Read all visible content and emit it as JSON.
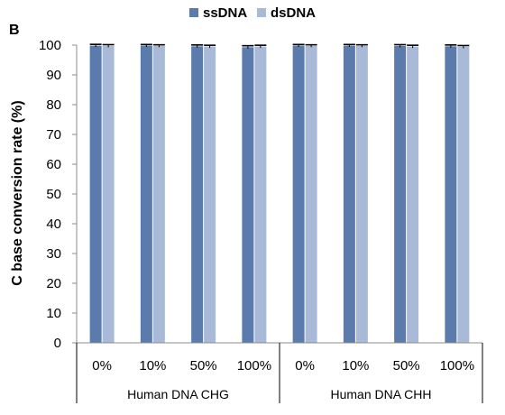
{
  "panel_label": "B",
  "chart_data": {
    "type": "bar",
    "title": "",
    "ylabel": "C base conversion rate (%)",
    "xlabel": "",
    "ylim": [
      0,
      100
    ],
    "yticks": [
      0,
      10,
      20,
      30,
      40,
      50,
      60,
      70,
      80,
      90,
      100
    ],
    "grid": false,
    "legend_position": "top-center",
    "groups": [
      {
        "label": "Human DNA CHG",
        "categories": [
          "0%",
          "10%",
          "50%",
          "100%"
        ]
      },
      {
        "label": "Human DNA CHH",
        "categories": [
          "0%",
          "10%",
          "50%",
          "100%"
        ]
      }
    ],
    "categories": [
      "0%",
      "10%",
      "50%",
      "100%",
      "0%",
      "10%",
      "50%",
      "100%"
    ],
    "series": [
      {
        "name": "ssDNA",
        "color": "#5B7BAD",
        "values": [
          99.8,
          99.8,
          99.6,
          99.3,
          99.8,
          99.8,
          99.7,
          99.6
        ],
        "error": [
          0.15,
          0.1,
          0.15,
          0.2,
          0.1,
          0.1,
          0.15,
          0.15
        ]
      },
      {
        "name": "dsDNA",
        "color": "#A9BAD8",
        "values": [
          99.7,
          99.7,
          99.5,
          99.5,
          99.7,
          99.7,
          99.5,
          99.4
        ],
        "error": [
          0.15,
          0.1,
          0.15,
          0.15,
          0.1,
          0.1,
          0.15,
          0.15
        ]
      }
    ]
  }
}
